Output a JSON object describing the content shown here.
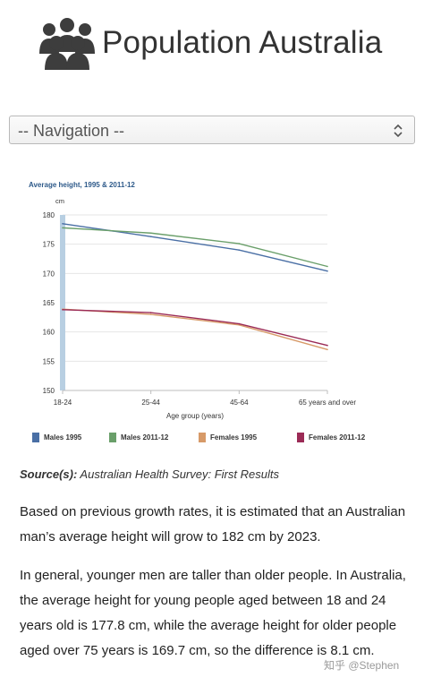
{
  "header": {
    "title": "Population Australia",
    "logo_icon": "people-group-icon"
  },
  "nav": {
    "label": "-- Navigation --",
    "icon": "select-arrows-icon"
  },
  "chart_data": {
    "type": "line",
    "title": "Average height, 1995 & 2011-12",
    "ylabel": "cm",
    "xlabel": "Age group (years)",
    "categories": [
      "18-24",
      "25-44",
      "45-64",
      "65 years and over"
    ],
    "ylim": [
      150,
      180
    ],
    "yticks": [
      "180",
      "175",
      "170",
      "165",
      "160",
      "155",
      "150"
    ],
    "grid": true,
    "legend_position": "bottom",
    "series": [
      {
        "name": "Males 1995",
        "color": "#4a6fa5",
        "values": [
          178.5,
          176.3,
          174.0,
          170.4
        ]
      },
      {
        "name": "Males 2011-12",
        "color": "#6a9f6a",
        "values": [
          177.8,
          176.9,
          175.1,
          171.2
        ]
      },
      {
        "name": "Females 1995",
        "color": "#d79a68",
        "values": [
          163.9,
          163.0,
          161.2,
          157.0
        ]
      },
      {
        "name": "Females 2011-12",
        "color": "#9b2b56",
        "values": [
          163.8,
          163.3,
          161.4,
          157.7
        ]
      }
    ]
  },
  "source": {
    "key": "Source(s):",
    "value": " Australian Health Survey: First Results"
  },
  "paragraphs": {
    "p1": "Based on previous growth rates, it is estimated that an Australian man’s average height will grow to 182 cm by 2023.",
    "p2": "In general, younger men are taller than older people. In Australia, the average height for young people aged between 18 and 24 years old is 177.8 cm, while the average height for older people aged over 75 years is 169.7 cm, so the difference is 8.1 cm."
  },
  "watermark": "知乎 @Stephen"
}
